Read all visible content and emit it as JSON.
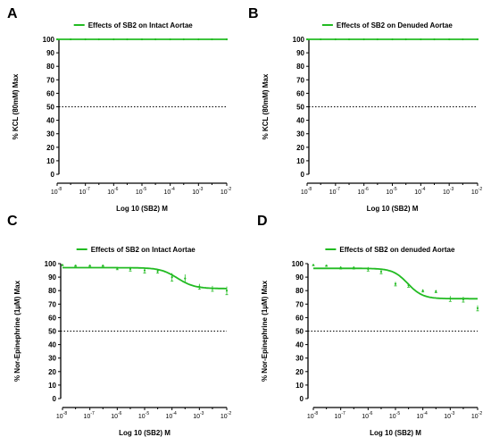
{
  "colors": {
    "series": "#22bb22",
    "axis": "#000000",
    "reference": "#000000"
  },
  "chart_data": [
    {
      "type": "line",
      "panel_letter": "A",
      "legend": "Effects of SB2 on Intact Aortae",
      "xlabel": "Log 10 (SB2) M",
      "ylabel": "% KCL (80mM) Max",
      "x_scale": "log",
      "xlim": [
        1e-08,
        0.01
      ],
      "ylim": [
        0,
        100
      ],
      "x_ticks": [
        "10",
        "10",
        "10",
        "10",
        "10",
        "10",
        "10"
      ],
      "x_tick_exps": [
        "-8",
        "-7",
        "-6",
        "-5",
        "-4",
        "-3",
        "-2"
      ],
      "y_ticks": [
        "0",
        "10",
        "20",
        "30",
        "40",
        "50",
        "60",
        "70",
        "80",
        "90",
        "100"
      ],
      "reference_line_y": 50,
      "legend_position": "top-center",
      "series": [
        {
          "x": [
            1e-08,
            3e-08,
            1e-07,
            3e-07,
            1e-06,
            3e-06,
            1e-05,
            3e-05,
            0.0001,
            0.0003,
            0.001,
            0.003,
            0.01
          ],
          "y": [
            100,
            100,
            100,
            100,
            100,
            100,
            100,
            100,
            100,
            100,
            100,
            100,
            100
          ],
          "fit_top": 100,
          "fit_bottom": 100,
          "fit_log_ec50": -4,
          "fit_hill": 1
        }
      ]
    },
    {
      "type": "line",
      "panel_letter": "B",
      "legend": "Effects of SB2 on Denuded Aortae",
      "xlabel": "Log 10 (SB2) M",
      "ylabel": "% KCL (80mM) Max",
      "x_scale": "log",
      "xlim": [
        1e-08,
        0.01
      ],
      "ylim": [
        0,
        100
      ],
      "x_ticks": [
        "10",
        "10",
        "10",
        "10",
        "10",
        "10",
        "10"
      ],
      "x_tick_exps": [
        "-8",
        "-7",
        "-6",
        "-5",
        "-4",
        "-3",
        "-2"
      ],
      "y_ticks": [
        "0",
        "10",
        "20",
        "30",
        "40",
        "50",
        "60",
        "70",
        "80",
        "90",
        "100"
      ],
      "reference_line_y": 50,
      "legend_position": "top-center",
      "series": [
        {
          "x": [
            1e-08,
            3e-08,
            1e-07,
            3e-07,
            1e-06,
            3e-06,
            1e-05,
            3e-05,
            0.0001,
            0.0003,
            0.001,
            0.003,
            0.01
          ],
          "y": [
            100,
            100,
            100,
            100,
            100,
            100,
            100,
            100,
            100,
            100,
            100,
            100,
            100
          ],
          "fit_top": 100,
          "fit_bottom": 100,
          "fit_log_ec50": -4,
          "fit_hill": 1
        }
      ]
    },
    {
      "type": "line",
      "panel_letter": "C",
      "legend": "Effects of SB2 on Intact Aortae",
      "xlabel": "Log 10 (SB2) M",
      "ylabel": "% Nor-Epinephrine (1µM) Max",
      "x_scale": "log",
      "xlim": [
        1e-08,
        0.01
      ],
      "ylim": [
        0,
        100
      ],
      "x_ticks": [
        "10",
        "10",
        "10",
        "10",
        "10",
        "10",
        "10"
      ],
      "x_tick_exps": [
        "-8",
        "-7",
        "-6",
        "-5",
        "-4",
        "-3",
        "-2"
      ],
      "y_ticks": [
        "0",
        "10",
        "20",
        "30",
        "40",
        "50",
        "60",
        "70",
        "80",
        "90",
        "100"
      ],
      "reference_line_y": 50,
      "legend_position": "top-center",
      "series": [
        {
          "x": [
            1e-08,
            3e-08,
            1e-07,
            3e-07,
            1e-06,
            3e-06,
            1e-05,
            3e-05,
            0.0001,
            0.0003,
            0.001,
            0.003,
            0.01
          ],
          "y": [
            99,
            98.5,
            98.5,
            98.5,
            96.5,
            96,
            95,
            94.5,
            90,
            89,
            83,
            81.5,
            80
          ],
          "err": [
            0.5,
            0.5,
            0.5,
            0.5,
            1,
            1.5,
            2,
            1.5,
            3,
            3,
            2,
            2,
            3
          ],
          "fit_top": 97,
          "fit_bottom": 81.5,
          "fit_log_ec50": -3.8,
          "fit_hill": 1.4
        }
      ]
    },
    {
      "type": "line",
      "panel_letter": "D",
      "legend": "Effects of SB2 on denuded Aortae",
      "xlabel": "Log 10 (SB2) M",
      "ylabel": "% Nor-Epinephrine (1µM) Max",
      "x_scale": "log",
      "xlim": [
        1e-08,
        0.01
      ],
      "ylim": [
        0,
        100
      ],
      "x_ticks": [
        "10",
        "10",
        "10",
        "10",
        "10",
        "10",
        "10"
      ],
      "x_tick_exps": [
        "-8",
        "-7",
        "-6",
        "-5",
        "-4",
        "-3",
        "-2"
      ],
      "y_ticks": [
        "0",
        "10",
        "20",
        "30",
        "40",
        "50",
        "60",
        "70",
        "80",
        "90",
        "100"
      ],
      "reference_line_y": 50,
      "legend_position": "top-center",
      "series": [
        {
          "x": [
            1e-08,
            3e-08,
            1e-07,
            3e-07,
            1e-06,
            3e-06,
            1e-05,
            3e-05,
            0.0001,
            0.0003,
            0.001,
            0.003,
            0.01
          ],
          "y": [
            99,
            98.5,
            97,
            97,
            96,
            94,
            85,
            84,
            80,
            79.5,
            74,
            73.5,
            67
          ],
          "err": [
            0.5,
            0.5,
            1,
            1,
            1.5,
            1.5,
            1.5,
            1.5,
            1,
            1,
            2,
            2,
            2
          ],
          "fit_top": 96.5,
          "fit_bottom": 74,
          "fit_log_ec50": -4.55,
          "fit_hill": 1.6
        }
      ]
    }
  ]
}
